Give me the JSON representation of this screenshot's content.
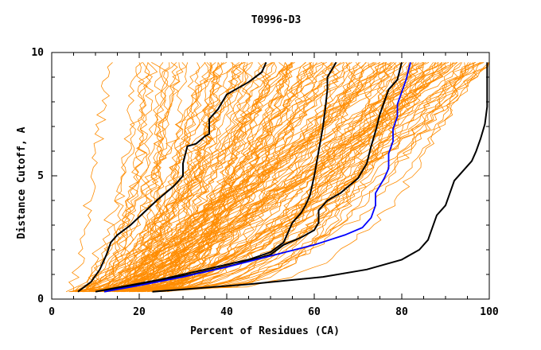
{
  "chart_data": {
    "type": "line",
    "title": "T0996-D3",
    "xlabel": "Percent of Residues (CA)",
    "ylabel": "Distance Cutoff, A",
    "xlim": [
      0,
      100
    ],
    "ylim": [
      0,
      10
    ],
    "x_ticks": [
      0,
      20,
      40,
      60,
      80,
      100
    ],
    "y_ticks": [
      0,
      5,
      10
    ],
    "grid": false,
    "colors": {
      "background_series": "#ff8c00",
      "highlight": "#000000",
      "target": "#0000ff"
    },
    "background_series_count": 150,
    "highlight_series": [
      {
        "name": "black-1",
        "color": "#000000",
        "points": [
          [
            6,
            0.3
          ],
          [
            9,
            0.7
          ],
          [
            11,
            1.2
          ],
          [
            12.5,
            1.8
          ],
          [
            13.5,
            2.3
          ],
          [
            15,
            2.6
          ],
          [
            18,
            3.0
          ],
          [
            21,
            3.5
          ],
          [
            24,
            4.0
          ],
          [
            26,
            4.3
          ],
          [
            28,
            4.6
          ],
          [
            30,
            5.0
          ],
          [
            30,
            5.5
          ],
          [
            31,
            6.2
          ],
          [
            33,
            6.3
          ],
          [
            35,
            6.6
          ],
          [
            36,
            6.7
          ],
          [
            36,
            7.3
          ],
          [
            38,
            7.7
          ],
          [
            40,
            8.3
          ],
          [
            42,
            8.5
          ],
          [
            45,
            8.8
          ],
          [
            48,
            9.2
          ],
          [
            49,
            9.6
          ]
        ]
      },
      {
        "name": "black-2",
        "color": "#000000",
        "points": [
          [
            10,
            0.3
          ],
          [
            16,
            0.5
          ],
          [
            25,
            0.8
          ],
          [
            35,
            1.2
          ],
          [
            45,
            1.6
          ],
          [
            50,
            1.9
          ],
          [
            53,
            2.3
          ],
          [
            54,
            2.7
          ],
          [
            55,
            3.1
          ],
          [
            57,
            3.5
          ],
          [
            58,
            3.8
          ],
          [
            59,
            4.2
          ],
          [
            59.5,
            4.6
          ],
          [
            60,
            5.0
          ],
          [
            60.5,
            5.5
          ],
          [
            61,
            6.0
          ],
          [
            61.5,
            6.5
          ],
          [
            62,
            7.0
          ],
          [
            62.5,
            7.7
          ],
          [
            63,
            8.5
          ],
          [
            63,
            9.0
          ],
          [
            65,
            9.6
          ]
        ]
      },
      {
        "name": "black-3",
        "color": "#000000",
        "points": [
          [
            12,
            0.3
          ],
          [
            20,
            0.6
          ],
          [
            32,
            1.0
          ],
          [
            42,
            1.4
          ],
          [
            50,
            1.8
          ],
          [
            53,
            2.2
          ],
          [
            57,
            2.5
          ],
          [
            60,
            2.8
          ],
          [
            61,
            3.1
          ],
          [
            61,
            3.6
          ],
          [
            63,
            4.0
          ],
          [
            66,
            4.3
          ],
          [
            68,
            4.6
          ],
          [
            70,
            4.9
          ],
          [
            72,
            5.5
          ],
          [
            73,
            6.2
          ],
          [
            74,
            6.8
          ],
          [
            75,
            7.5
          ],
          [
            76,
            8.0
          ],
          [
            77,
            8.5
          ],
          [
            79,
            8.9
          ],
          [
            80,
            9.6
          ]
        ]
      },
      {
        "name": "black-4",
        "color": "#000000",
        "points": [
          [
            23,
            0.3
          ],
          [
            45,
            0.6
          ],
          [
            62,
            0.9
          ],
          [
            72,
            1.2
          ],
          [
            80,
            1.6
          ],
          [
            84,
            2.0
          ],
          [
            86,
            2.4
          ],
          [
            87,
            2.9
          ],
          [
            88,
            3.4
          ],
          [
            90,
            3.8
          ],
          [
            91,
            4.3
          ],
          [
            92,
            4.8
          ],
          [
            94,
            5.2
          ],
          [
            96,
            5.6
          ],
          [
            97,
            6.0
          ],
          [
            98,
            6.5
          ],
          [
            99,
            7.1
          ],
          [
            99.5,
            7.8
          ],
          [
            99.5,
            8.6
          ],
          [
            99.5,
            9.6
          ]
        ]
      }
    ],
    "target_series": {
      "name": "blue",
      "color": "#0000ff",
      "points": [
        [
          12,
          0.3
        ],
        [
          20,
          0.55
        ],
        [
          30,
          0.9
        ],
        [
          40,
          1.3
        ],
        [
          50,
          1.75
        ],
        [
          60,
          2.2
        ],
        [
          67,
          2.6
        ],
        [
          71,
          2.9
        ],
        [
          73,
          3.3
        ],
        [
          74,
          3.8
        ],
        [
          74,
          4.3
        ],
        [
          75,
          4.6
        ],
        [
          76,
          4.9
        ],
        [
          77,
          5.3
        ],
        [
          77,
          5.9
        ],
        [
          78,
          6.4
        ],
        [
          78,
          6.9
        ],
        [
          79,
          7.4
        ],
        [
          79,
          7.9
        ],
        [
          80,
          8.4
        ],
        [
          81,
          8.9
        ],
        [
          82,
          9.6
        ]
      ]
    }
  }
}
